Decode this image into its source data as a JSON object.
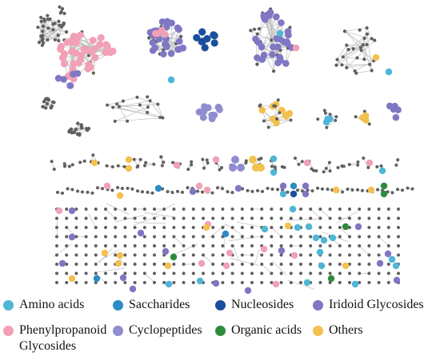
{
  "legend": {
    "items": [
      {
        "label": "Amino acids",
        "color": "#4fb6d6"
      },
      {
        "label": "Saccharides",
        "color": "#2b8cc4"
      },
      {
        "label": "Nucleosides",
        "color": "#1b4f9c"
      },
      {
        "label": "Iridoid Glycosides",
        "color": "#7f77c4"
      },
      {
        "label": "Phenylpropanoid\nGlycosides",
        "color": "#f2a0b6"
      },
      {
        "label": "Cyclopeptides",
        "color": "#8f8ccf"
      },
      {
        "label": "Organic acids",
        "color": "#2e8b3e"
      },
      {
        "label": "Others",
        "color": "#f3c14f"
      }
    ]
  },
  "colors": {
    "node_default": "#5f5f5f",
    "edge": "#bdbdbd"
  }
}
